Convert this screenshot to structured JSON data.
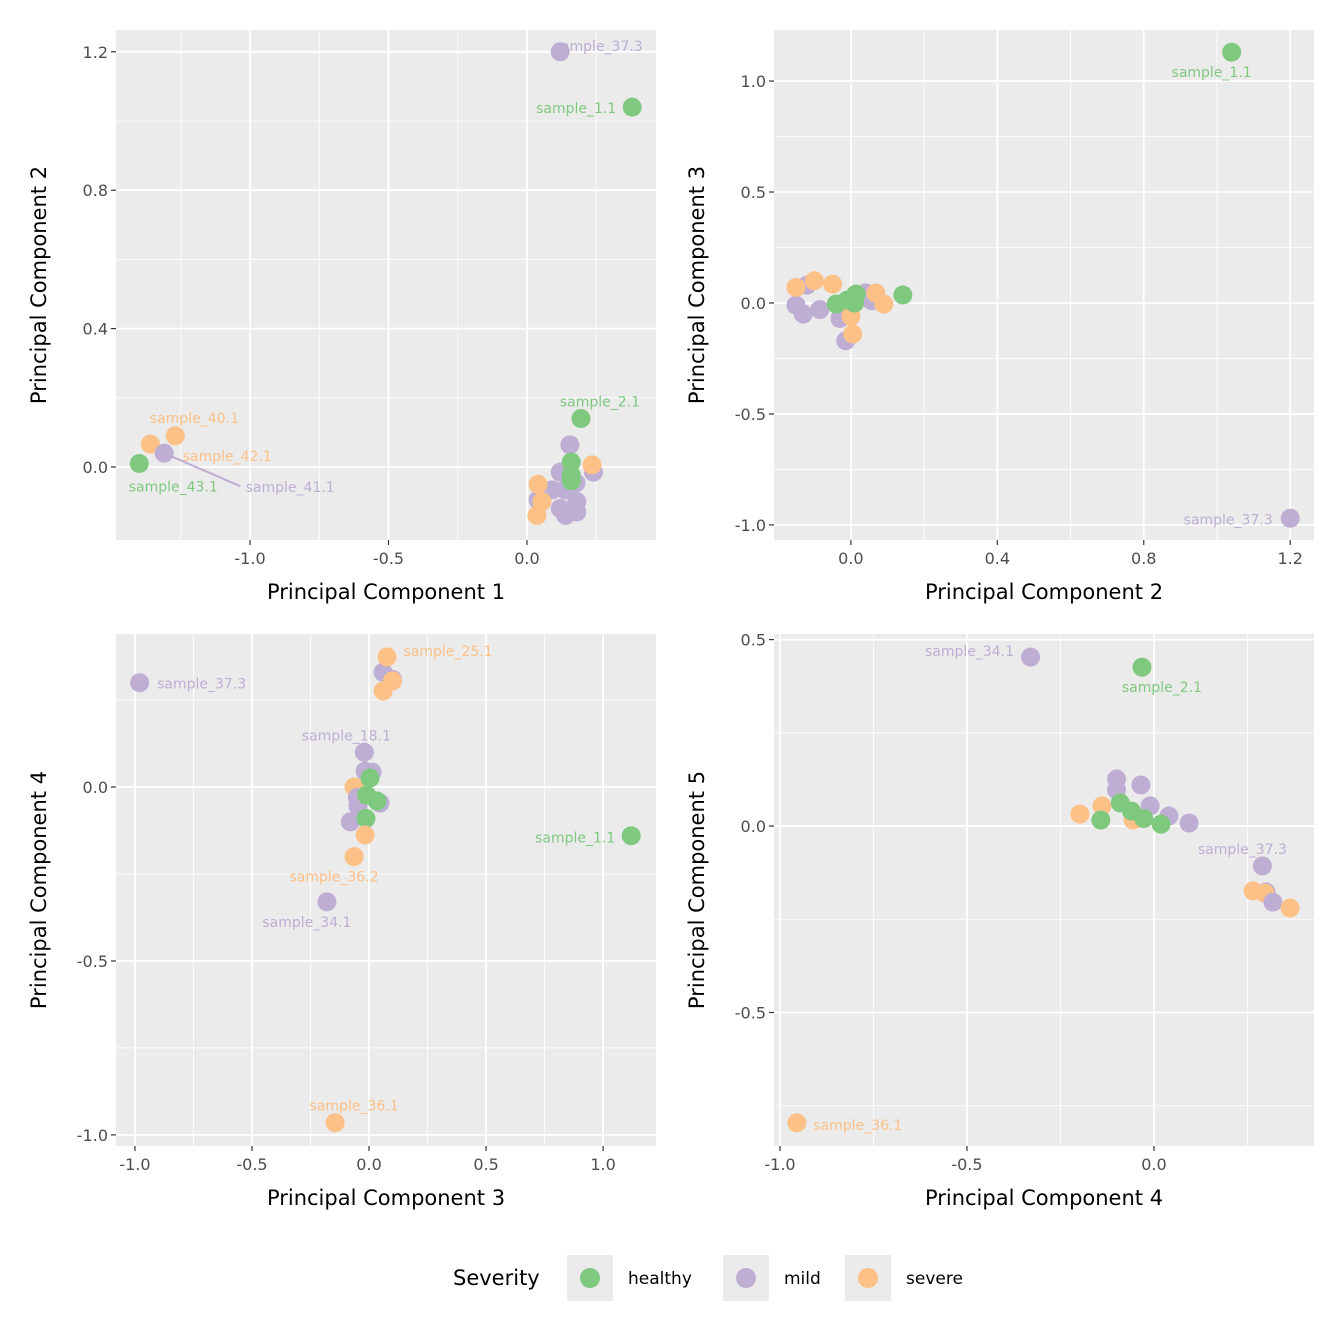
{
  "colors": {
    "healthy": "#7FC97F",
    "mild": "#BEAED4",
    "severe": "#FDC086",
    "panel_bg": "#EBEBEB",
    "grid": "#FFFFFF"
  },
  "legend": {
    "title": "Severity",
    "items": [
      {
        "key": "healthy",
        "label": "healthy"
      },
      {
        "key": "mild",
        "label": "mild"
      },
      {
        "key": "severe",
        "label": "severe"
      }
    ]
  },
  "chart_data": [
    {
      "type": "scatter",
      "xlabel": "Principal Component 1",
      "ylabel": "Principal Component 2",
      "xlim": [
        -1.484,
        0.466
      ],
      "ylim": [
        -0.211,
        1.263
      ],
      "xticks": [
        -1.0,
        -0.5,
        0.0
      ],
      "xtick_labels": [
        "-1.0",
        "-0.5",
        "0.0"
      ],
      "yticks": [
        0.0,
        0.4,
        0.8,
        1.2
      ],
      "ytick_labels": [
        "0.0",
        "0.4",
        "0.8",
        "1.2"
      ],
      "xminor": [
        -1.25,
        -0.75,
        -0.25,
        0.25
      ],
      "yminor": [
        0.2,
        0.6,
        1.0
      ],
      "points": [
        {
          "g": "mild",
          "x": 0.12,
          "y": 1.2,
          "label": "sample_37.3"
        },
        {
          "g": "healthy",
          "x": 0.38,
          "y": 1.04,
          "label": "sample_1.1"
        },
        {
          "g": "healthy",
          "x": 0.195,
          "y": 0.14,
          "label": "sample_2.1"
        },
        {
          "g": "severe",
          "x": -1.36,
          "y": 0.066,
          "label": "sample_40.1"
        },
        {
          "g": "severe",
          "x": -1.27,
          "y": 0.09,
          "label": "sample_42.1"
        },
        {
          "g": "mild",
          "x": -1.31,
          "y": 0.04,
          "label": "sample_41.1"
        },
        {
          "g": "healthy",
          "x": -1.4,
          "y": 0.01,
          "label": "sample_43.1"
        },
        {
          "g": "mild",
          "x": 0.155,
          "y": 0.064
        },
        {
          "g": "mild",
          "x": 0.24,
          "y": -0.015
        },
        {
          "g": "severe",
          "x": 0.235,
          "y": 0.006
        },
        {
          "g": "mild",
          "x": 0.12,
          "y": -0.015
        },
        {
          "g": "mild",
          "x": 0.177,
          "y": -0.046
        },
        {
          "g": "mild",
          "x": 0.09,
          "y": -0.066
        },
        {
          "g": "mild",
          "x": 0.137,
          "y": -0.066
        },
        {
          "g": "mild",
          "x": 0.04,
          "y": -0.095
        },
        {
          "g": "mild",
          "x": 0.18,
          "y": -0.1
        },
        {
          "g": "mild",
          "x": 0.12,
          "y": -0.12
        },
        {
          "g": "mild",
          "x": 0.18,
          "y": -0.13
        },
        {
          "g": "mild",
          "x": 0.14,
          "y": -0.14
        },
        {
          "g": "healthy",
          "x": 0.16,
          "y": 0.014
        },
        {
          "g": "healthy",
          "x": 0.16,
          "y": -0.023
        },
        {
          "g": "healthy",
          "x": 0.16,
          "y": -0.04
        },
        {
          "g": "severe",
          "x": 0.04,
          "y": -0.05
        },
        {
          "g": "severe",
          "x": 0.054,
          "y": -0.1
        },
        {
          "g": "severe",
          "x": 0.036,
          "y": -0.14
        }
      ]
    },
    {
      "type": "scatter",
      "xlabel": "Principal Component 2",
      "ylabel": "Principal Component 3",
      "xlim": [
        -0.21,
        1.265
      ],
      "ylim": [
        -1.068,
        1.23
      ],
      "xticks": [
        0.0,
        0.4,
        0.8,
        1.2
      ],
      "xtick_labels": [
        "0.0",
        "0.4",
        "0.8",
        "1.2"
      ],
      "yticks": [
        -1.0,
        -0.5,
        0.0,
        0.5,
        1.0
      ],
      "ytick_labels": [
        "-1.0",
        "-0.5",
        "0.0",
        "0.5",
        "1.0"
      ],
      "xminor": [
        0.2,
        0.6,
        1.0
      ],
      "yminor": [
        -0.75,
        -0.25,
        0.25,
        0.75
      ],
      "points": [
        {
          "g": "healthy",
          "x": 1.04,
          "y": 1.13,
          "label": "sample_1.1"
        },
        {
          "g": "mild",
          "x": 1.2,
          "y": -0.97,
          "label": "sample_37.3"
        },
        {
          "g": "mild",
          "x": -0.15,
          "y": -0.01
        },
        {
          "g": "mild",
          "x": -0.13,
          "y": -0.05
        },
        {
          "g": "mild",
          "x": -0.085,
          "y": -0.03
        },
        {
          "g": "mild",
          "x": -0.03,
          "y": -0.07
        },
        {
          "g": "mild",
          "x": -0.12,
          "y": 0.08
        },
        {
          "g": "mild",
          "x": 0.04,
          "y": 0.045
        },
        {
          "g": "mild",
          "x": 0.057,
          "y": 0.01
        },
        {
          "g": "mild",
          "x": -0.014,
          "y": -0.17
        },
        {
          "g": "severe",
          "x": -0.15,
          "y": 0.07
        },
        {
          "g": "severe",
          "x": -0.1,
          "y": 0.1
        },
        {
          "g": "severe",
          "x": -0.05,
          "y": 0.085
        },
        {
          "g": "severe",
          "x": 0.068,
          "y": 0.045
        },
        {
          "g": "severe",
          "x": 0.09,
          "y": -0.005
        },
        {
          "g": "severe",
          "x": 0.0,
          "y": -0.06
        },
        {
          "g": "severe",
          "x": 0.005,
          "y": -0.14
        },
        {
          "g": "healthy",
          "x": -0.04,
          "y": -0.005
        },
        {
          "g": "healthy",
          "x": -0.01,
          "y": 0.013
        },
        {
          "g": "healthy",
          "x": 0.014,
          "y": 0.04
        },
        {
          "g": "healthy",
          "x": 0.01,
          "y": 0.0
        },
        {
          "g": "healthy",
          "x": 0.142,
          "y": 0.036
        }
      ]
    },
    {
      "type": "scatter",
      "xlabel": "Principal Component 3",
      "ylabel": "Principal Component 4",
      "xlim": [
        -1.081,
        1.226
      ],
      "ylim": [
        -1.032,
        0.44
      ],
      "xticks": [
        -1.0,
        -0.5,
        0.0,
        0.5,
        1.0
      ],
      "xtick_labels": [
        "-1.0",
        "-0.5",
        "0.0",
        "0.5",
        "1.0"
      ],
      "yticks": [
        -1.0,
        -0.5,
        0.0
      ],
      "ytick_labels": [
        "-1.0",
        "-0.5",
        "0.0"
      ],
      "xminor": [
        -0.75,
        -0.25,
        0.25,
        0.75
      ],
      "yminor": [
        -0.75,
        -0.25,
        0.25
      ],
      "points": [
        {
          "g": "mild",
          "x": -0.98,
          "y": 0.3,
          "label": "sample_37.3"
        },
        {
          "g": "healthy",
          "x": 1.12,
          "y": -0.14,
          "label": "sample_1.1"
        },
        {
          "g": "severe",
          "x": -0.145,
          "y": -0.965,
          "label": "sample_36.1"
        },
        {
          "g": "mild",
          "x": -0.18,
          "y": -0.33,
          "label": "sample_34.1"
        },
        {
          "g": "severe",
          "x": -0.064,
          "y": -0.2,
          "label": "sample_36.2"
        },
        {
          "g": "mild",
          "x": 0.06,
          "y": 0.33
        },
        {
          "g": "mild",
          "x": 0.1,
          "y": 0.31
        },
        {
          "g": "severe",
          "x": 0.1,
          "y": 0.305
        },
        {
          "g": "severe",
          "x": 0.06,
          "y": 0.276
        },
        {
          "g": "severe",
          "x": 0.077,
          "y": 0.374,
          "label": "sample_25.1"
        },
        {
          "g": "mild",
          "x": -0.02,
          "y": 0.1,
          "label": "sample_18.1"
        },
        {
          "g": "mild",
          "x": -0.017,
          "y": 0.046
        },
        {
          "g": "mild",
          "x": 0.013,
          "y": 0.043
        },
        {
          "g": "severe",
          "x": -0.064,
          "y": 0.0
        },
        {
          "g": "mild",
          "x": -0.05,
          "y": -0.03
        },
        {
          "g": "mild",
          "x": 0.047,
          "y": -0.046
        },
        {
          "g": "mild",
          "x": -0.047,
          "y": -0.055
        },
        {
          "g": "mild",
          "x": -0.08,
          "y": -0.1
        },
        {
          "g": "healthy",
          "x": 0.004,
          "y": 0.026
        },
        {
          "g": "healthy",
          "x": -0.01,
          "y": -0.023
        },
        {
          "g": "healthy",
          "x": 0.034,
          "y": -0.04
        },
        {
          "g": "healthy",
          "x": -0.013,
          "y": -0.09
        },
        {
          "g": "severe",
          "x": -0.017,
          "y": -0.138
        }
      ]
    },
    {
      "type": "scatter",
      "xlabel": "Principal Component 4",
      "ylabel": "Principal Component 5",
      "xlim": [
        -1.016,
        0.428
      ],
      "ylim": [
        -0.858,
        0.515
      ],
      "xticks": [
        -1.0,
        -0.5,
        0.0
      ],
      "xtick_labels": [
        "-1.0",
        "-0.5",
        "0.0"
      ],
      "yticks": [
        -0.5,
        0.0,
        0.5
      ],
      "ytick_labels": [
        "-0.5",
        "0.0",
        "0.5"
      ],
      "xminor": [
        -0.75,
        -0.25,
        0.25
      ],
      "yminor": [
        -0.75,
        -0.25,
        0.25
      ],
      "points": [
        {
          "g": "mild",
          "x": -0.33,
          "y": 0.453,
          "label": "sample_34.1"
        },
        {
          "g": "healthy",
          "x": -0.032,
          "y": 0.426,
          "label": "sample_2.1"
        },
        {
          "g": "severe",
          "x": -0.955,
          "y": -0.796,
          "label": "sample_36.1"
        },
        {
          "g": "mild",
          "x": 0.29,
          "y": -0.107,
          "label": "sample_37.3"
        },
        {
          "g": "severe",
          "x": 0.265,
          "y": -0.174
        },
        {
          "g": "mild",
          "x": 0.3,
          "y": -0.177
        },
        {
          "g": "severe",
          "x": 0.297,
          "y": -0.18
        },
        {
          "g": "mild",
          "x": 0.318,
          "y": -0.204
        },
        {
          "g": "severe",
          "x": 0.364,
          "y": -0.22
        },
        {
          "g": "severe",
          "x": -0.198,
          "y": 0.032
        },
        {
          "g": "mild",
          "x": -0.1,
          "y": 0.126
        },
        {
          "g": "mild",
          "x": -0.1,
          "y": 0.097
        },
        {
          "g": "mild",
          "x": -0.035,
          "y": 0.11
        },
        {
          "g": "mild",
          "x": -0.01,
          "y": 0.054
        },
        {
          "g": "mild",
          "x": 0.04,
          "y": 0.027
        },
        {
          "g": "mild",
          "x": 0.094,
          "y": 0.008
        },
        {
          "g": "severe",
          "x": -0.139,
          "y": 0.054
        },
        {
          "g": "severe",
          "x": -0.056,
          "y": 0.016
        },
        {
          "g": "healthy",
          "x": -0.142,
          "y": 0.016
        },
        {
          "g": "healthy",
          "x": -0.09,
          "y": 0.062
        },
        {
          "g": "healthy",
          "x": -0.06,
          "y": 0.04
        },
        {
          "g": "healthy",
          "x": -0.027,
          "y": 0.02
        },
        {
          "g": "healthy",
          "x": 0.019,
          "y": 0.005
        }
      ]
    }
  ]
}
